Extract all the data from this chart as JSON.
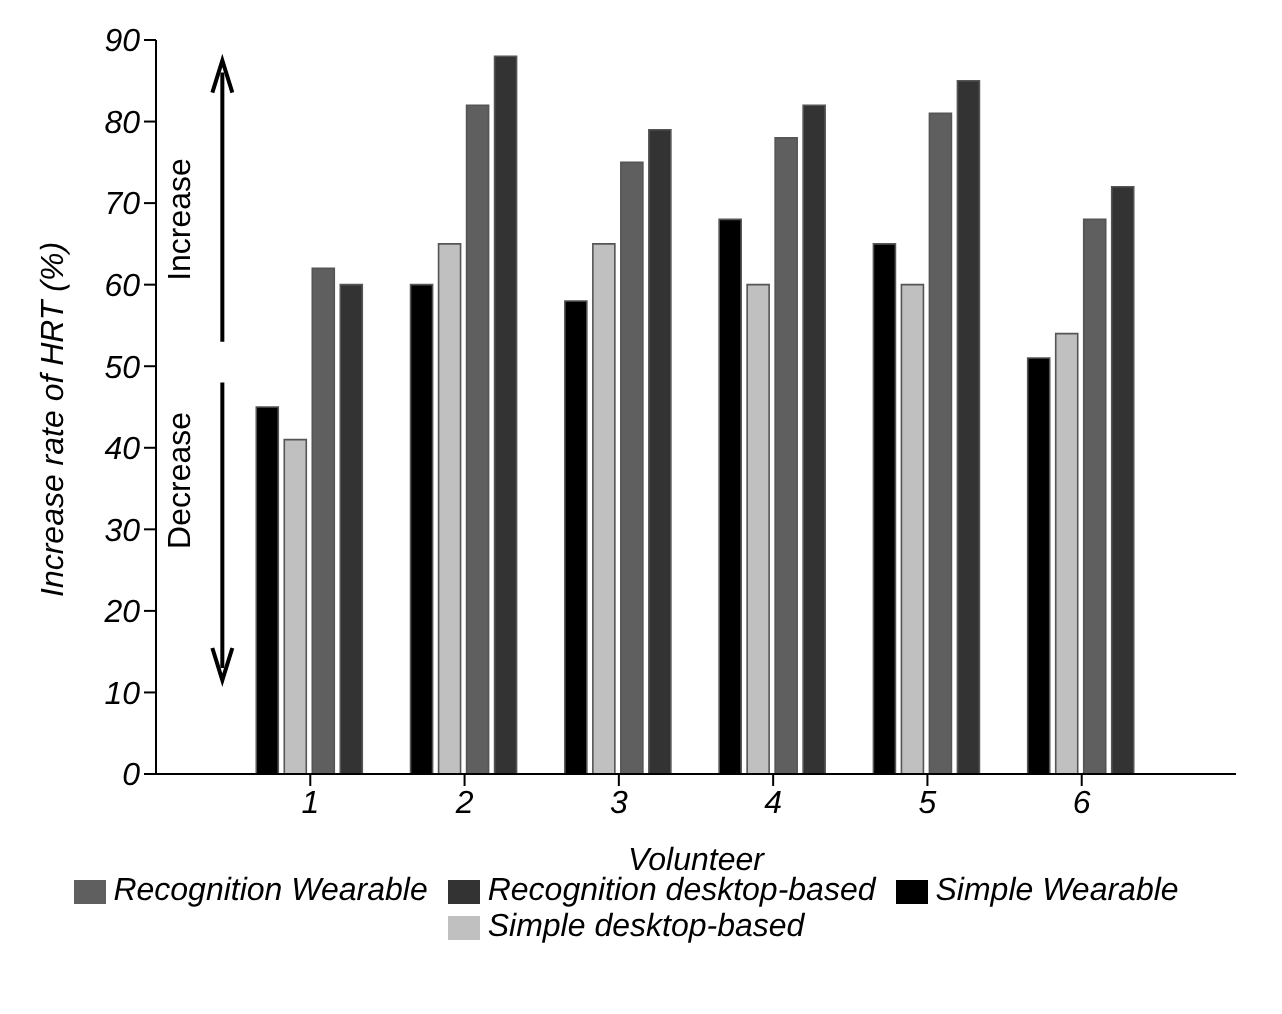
{
  "chart_data": {
    "type": "bar",
    "xlabel": "Volunteer",
    "ylabel": "Increase rate of HRT (%)",
    "categories": [
      "1",
      "2",
      "3",
      "4",
      "5",
      "6"
    ],
    "series": [
      {
        "name": "Simple Wearable",
        "color": "#000000",
        "values": [
          45,
          60,
          58,
          68,
          65,
          51
        ]
      },
      {
        "name": "Simple desktop-based",
        "color": "#c0c0c0",
        "values": [
          41,
          65,
          65,
          60,
          60,
          54
        ]
      },
      {
        "name": "Recognition Wearable",
        "color": "#5f5f5f",
        "values": [
          62,
          82,
          75,
          78,
          81,
          68
        ]
      },
      {
        "name": "Recognition desktop-based",
        "color": "#333333",
        "values": [
          60,
          88,
          79,
          82,
          85,
          72
        ]
      }
    ],
    "ylim": [
      0,
      90
    ],
    "yticks": [
      0,
      10,
      20,
      30,
      40,
      50,
      60,
      70,
      80,
      90
    ],
    "grid": false,
    "legend": "bottom",
    "annotations": [
      "Increase",
      "Decrease"
    ]
  }
}
